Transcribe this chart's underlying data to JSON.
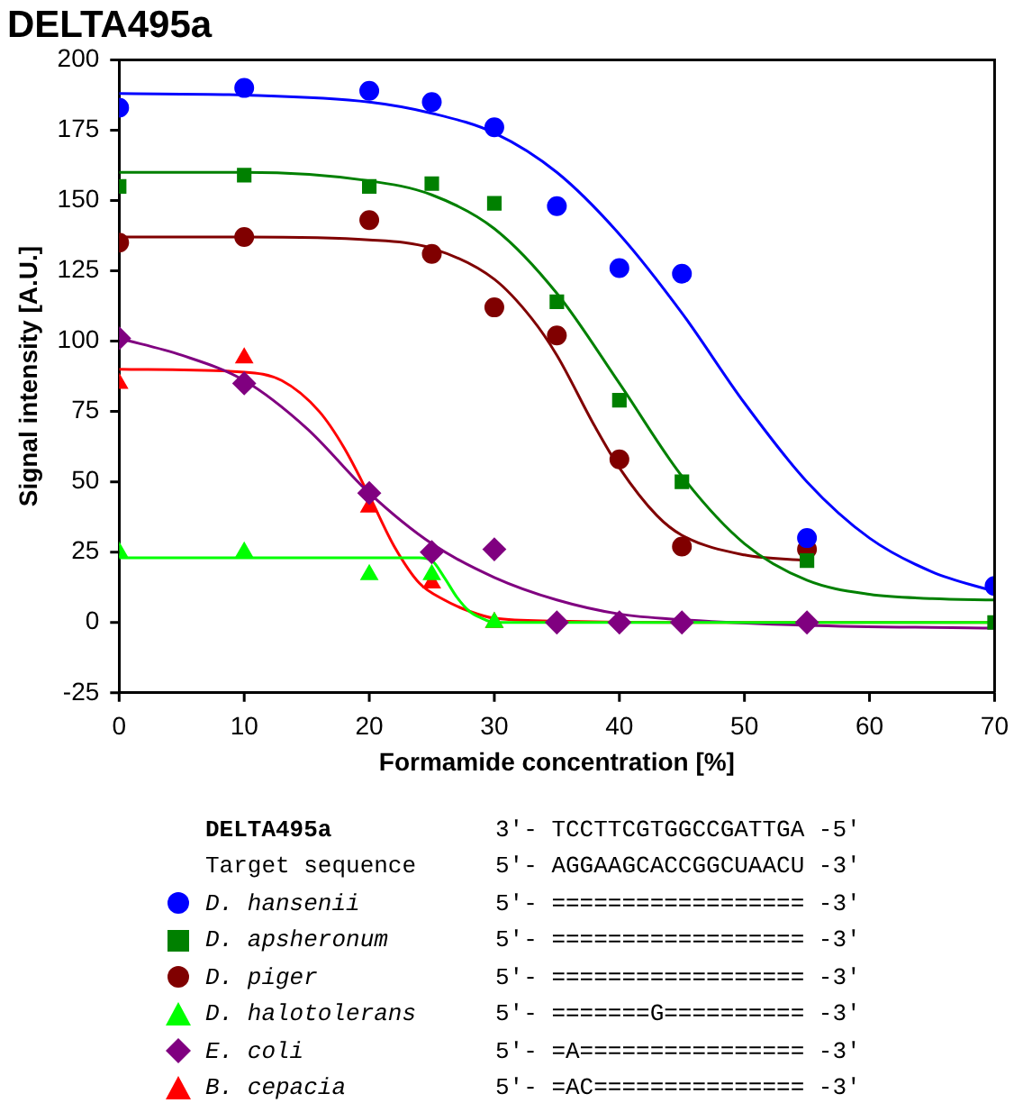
{
  "chart_data": {
    "type": "scatter",
    "title": "DELTA495a",
    "xlabel": "Formamide concentration [%]",
    "ylabel": "Signal intensity [A.U.]",
    "xlim": [
      0,
      70
    ],
    "xticks": [
      0,
      10,
      20,
      30,
      40,
      50,
      60,
      70
    ],
    "ylim": [
      -25,
      200
    ],
    "yticks": [
      -25,
      0,
      25,
      50,
      75,
      100,
      125,
      150,
      175,
      200
    ],
    "grid": false,
    "legend": "bottom",
    "series": [
      {
        "name": "D. hansenii",
        "marker": "circle",
        "color": "#0000ff",
        "x": [
          0,
          10,
          20,
          25,
          30,
          35,
          40,
          45,
          55,
          70
        ],
        "values": [
          183,
          190,
          189,
          185,
          176,
          148,
          126,
          124,
          30,
          13
        ]
      },
      {
        "name": "D. apsheronum",
        "marker": "square",
        "color": "#008000",
        "x": [
          0,
          10,
          20,
          25,
          30,
          35,
          40,
          45,
          55,
          70
        ],
        "values": [
          155,
          159,
          155,
          156,
          149,
          114,
          79,
          50,
          22,
          0
        ]
      },
      {
        "name": "D. piger",
        "marker": "circle",
        "color": "#800000",
        "x": [
          0,
          10,
          20,
          25,
          30,
          35,
          40,
          45,
          55
        ],
        "values": [
          135,
          137,
          143,
          131,
          112,
          102,
          58,
          27,
          26
        ]
      },
      {
        "name": "D. halotolerans",
        "marker": "triangle",
        "color": "#00ff00",
        "x": [
          0,
          10,
          20,
          25,
          30
        ],
        "values": [
          25,
          25,
          17,
          17,
          0
        ]
      },
      {
        "name": "E. coli",
        "marker": "diamond",
        "color": "#800080",
        "x": [
          0,
          10,
          20,
          25,
          30,
          35,
          40,
          45,
          55
        ],
        "values": [
          101,
          85,
          46,
          25,
          26,
          0,
          0,
          0,
          0
        ]
      },
      {
        "name": "B. cepacia",
        "marker": "triangle",
        "color": "#ff0000",
        "x": [
          0,
          10,
          20,
          25,
          30
        ],
        "values": [
          85,
          94,
          41,
          14,
          0
        ]
      },
      {
        "type": "line",
        "marker": "none",
        "color": "#0000ff",
        "x": [
          0,
          10,
          20,
          25,
          30,
          35,
          40,
          45,
          50,
          55,
          60,
          65,
          70
        ],
        "values": [
          188,
          187.5,
          185,
          181,
          174,
          160,
          138,
          110,
          78,
          50,
          30,
          18,
          11
        ]
      },
      {
        "type": "line",
        "marker": "none",
        "color": "#008000",
        "x": [
          0,
          10,
          20,
          25,
          30,
          35,
          40,
          45,
          50,
          55,
          60,
          65,
          70
        ],
        "values": [
          160,
          160,
          157,
          152,
          140,
          117,
          85,
          52,
          28,
          15,
          10,
          8.5,
          8
        ]
      },
      {
        "type": "line",
        "marker": "none",
        "color": "#800000",
        "x": [
          0,
          10,
          20,
          25,
          30,
          33,
          35,
          38,
          40,
          43,
          45,
          50,
          55
        ],
        "values": [
          137,
          137,
          136,
          133,
          122,
          108,
          95,
          70,
          55,
          38,
          31,
          24,
          22
        ]
      },
      {
        "type": "line",
        "marker": "none",
        "color": "#00ff00",
        "x": [
          0,
          20,
          24,
          25,
          26,
          27,
          28,
          29,
          30,
          70
        ],
        "values": [
          23,
          23,
          23,
          22,
          16,
          9,
          4,
          1.5,
          0,
          0
        ]
      },
      {
        "type": "line",
        "marker": "none",
        "color": "#800080",
        "x": [
          0,
          5,
          10,
          15,
          20,
          25,
          30,
          35,
          40,
          45,
          55,
          70
        ],
        "values": [
          101,
          95,
          86,
          69,
          46,
          28,
          16,
          8,
          3,
          1,
          -1,
          -2
        ]
      },
      {
        "type": "line",
        "marker": "none",
        "color": "#ff0000",
        "x": [
          0,
          10,
          13,
          16,
          18,
          20,
          22,
          24,
          26,
          28,
          30,
          35,
          45,
          70
        ],
        "values": [
          90,
          89,
          86,
          75,
          62,
          45,
          27,
          14,
          8,
          4,
          1.5,
          0.5,
          0,
          0
        ]
      }
    ],
    "annotations": [
      "DELTA495a",
      "3′- TCCTTCGTGGCCGATTGA -5′",
      "Target sequence",
      "5′- AGGAAGCACCGGCUAACU -3′",
      "5′- ================== -3′",
      "5′- ================== -3′",
      "5′- ================== -3′",
      "5′- =======G========== -3′",
      "5′- =A================ -3′",
      "5′- =AC=============== -3′"
    ]
  }
}
